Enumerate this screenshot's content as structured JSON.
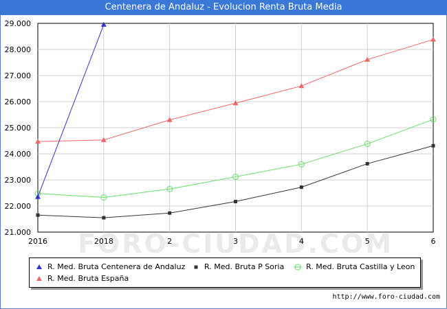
{
  "header": {
    "title": "Centenera de Andaluz - Evolucion Renta Bruta Media"
  },
  "watermark": "FORO-CIUDAD.COM",
  "footer": {
    "url": "http://www.foro-ciudad.com"
  },
  "chart_data": {
    "type": "line",
    "title": "Centenera de Andaluz - Evolucion Renta Bruta Media",
    "xlabel": "",
    "ylabel": "",
    "categories": [
      "2016",
      "2018",
      "2",
      "3",
      "4",
      "5",
      "6"
    ],
    "y_ticks": [
      "21.000",
      "22.000",
      "23.000",
      "24.000",
      "25.000",
      "26.000",
      "27.000",
      "28.000",
      "29.000"
    ],
    "ylim": [
      21000,
      29000
    ],
    "grid": true,
    "legend_position": "bottom",
    "series": [
      {
        "name": "R. Med. Bruta Centenera de Andaluz",
        "color": "#3333cc",
        "marker": "triangle",
        "values": [
          22350,
          28950,
          null,
          null,
          null,
          null,
          null
        ]
      },
      {
        "name": "R. Med. Bruta P Soria",
        "color": "#333333",
        "marker": "square",
        "values": [
          21650,
          21550,
          21730,
          22170,
          22720,
          23620,
          24310
        ]
      },
      {
        "name": "R. Med. Bruta Castilla y Leon",
        "color": "#66dd66",
        "marker": "circle",
        "values": [
          22480,
          22330,
          22650,
          23120,
          23600,
          24380,
          25320
        ]
      },
      {
        "name": "R. Med. Bruta España",
        "color": "#ee6666",
        "marker": "triangle",
        "values": [
          24470,
          24530,
          25300,
          25940,
          26600,
          27610,
          28380
        ]
      }
    ]
  }
}
